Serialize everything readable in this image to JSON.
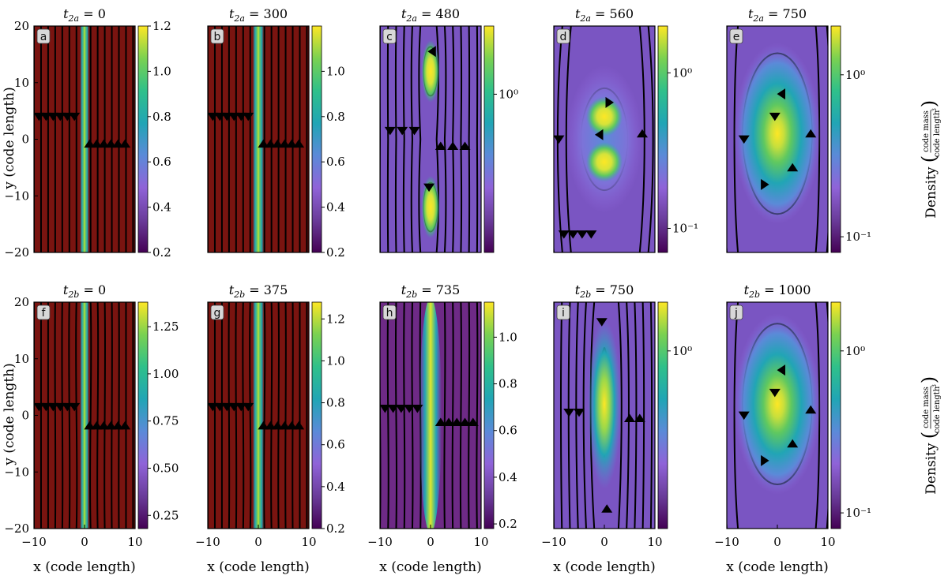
{
  "figure": {
    "x_axis_label": "x  (code length)",
    "y_axis_label": "y  (code length)",
    "colorbar_label": "Density",
    "colorbar_unit_numerator": "code mass",
    "colorbar_unit_denominator": "code length",
    "colorbar_unit_power": "3",
    "colormap": [
      "#7a1410",
      "#440154",
      "#6a3c9a",
      "#8f63d8",
      "#5b8ad8",
      "#21a5b5",
      "#2fc08a",
      "#7ad151",
      "#fde725"
    ],
    "background_color": "#7a1410",
    "streamline_color": "#000000"
  },
  "chart_data": [
    {
      "panel": "a",
      "type": "heatmap",
      "title_sub": "2a",
      "title_value": "0",
      "colorbar_scale": "linear",
      "clim": [
        0.2,
        1.2
      ],
      "colorbar_ticks": [
        "0.2",
        "0.4",
        "0.6",
        "0.8",
        "1.0",
        "1.2"
      ],
      "xlim": [
        -10,
        10
      ],
      "ylim": [
        -20,
        20
      ],
      "xticks": [],
      "yticks": [
        "−20",
        "−10",
        "0",
        "10",
        "20"
      ],
      "field": "sheet",
      "sheet_halfwidth": 0.4
    },
    {
      "panel": "b",
      "type": "heatmap",
      "title_sub": "2a",
      "title_value": "300",
      "colorbar_scale": "linear",
      "clim": [
        0.2,
        1.2
      ],
      "colorbar_ticks": [
        "0.2",
        "0.4",
        "0.6",
        "0.8",
        "1.0"
      ],
      "xlim": [
        -10,
        10
      ],
      "ylim": [
        -20,
        20
      ],
      "xticks": [],
      "yticks": [],
      "field": "sheet",
      "sheet_halfwidth": 0.5
    },
    {
      "panel": "c",
      "type": "heatmap",
      "title_sub": "2a",
      "title_value": "480",
      "colorbar_scale": "log",
      "clim": [
        0.2,
        2.0
      ],
      "colorbar_ticks": [
        "10⁰"
      ],
      "xlim": [
        -10,
        10
      ],
      "ylim": [
        -20,
        20
      ],
      "xticks": [],
      "yticks": [],
      "field": "twoblobs"
    },
    {
      "panel": "d",
      "type": "heatmap",
      "title_sub": "2a",
      "title_value": "560",
      "colorbar_scale": "log",
      "clim": [
        0.07,
        2.0
      ],
      "colorbar_ticks": [
        "10⁰",
        "10⁻¹"
      ],
      "xlim": [
        -10,
        10
      ],
      "ylim": [
        -20,
        20
      ],
      "xticks": [],
      "yticks": [],
      "field": "merge"
    },
    {
      "panel": "e",
      "type": "heatmap",
      "title_sub": "2a",
      "title_value": "750",
      "colorbar_scale": "log",
      "clim": [
        0.08,
        2.0
      ],
      "colorbar_ticks": [
        "10⁰",
        "10⁻¹"
      ],
      "xlim": [
        -10,
        10
      ],
      "ylim": [
        -20,
        20
      ],
      "xticks": [],
      "yticks": [],
      "field": "plasmoid"
    },
    {
      "panel": "f",
      "type": "heatmap",
      "title_sub": "2b",
      "title_value": "0",
      "colorbar_scale": "linear",
      "clim": [
        0.18,
        1.38
      ],
      "colorbar_ticks": [
        "0.25",
        "0.50",
        "0.75",
        "1.00",
        "1.25"
      ],
      "xlim": [
        -10,
        10
      ],
      "ylim": [
        -20,
        20
      ],
      "xticks": [
        "−10",
        "0",
        "10"
      ],
      "yticks": [
        "−20",
        "−10",
        "0",
        "10",
        "20"
      ],
      "field": "sheet",
      "sheet_halfwidth": 0.4
    },
    {
      "panel": "g",
      "type": "heatmap",
      "title_sub": "2b",
      "title_value": "375",
      "colorbar_scale": "linear",
      "clim": [
        0.2,
        1.28
      ],
      "colorbar_ticks": [
        "0.2",
        "0.4",
        "0.6",
        "0.8",
        "1.0",
        "1.2"
      ],
      "xlim": [
        -10,
        10
      ],
      "ylim": [
        -20,
        20
      ],
      "xticks": [
        "−10",
        "0",
        "10"
      ],
      "yticks": [],
      "field": "sheet",
      "sheet_halfwidth": 0.5
    },
    {
      "panel": "h",
      "type": "heatmap",
      "title_sub": "2b",
      "title_value": "735",
      "colorbar_scale": "linear",
      "clim": [
        0.18,
        1.15
      ],
      "colorbar_ticks": [
        "0.2",
        "0.4",
        "0.6",
        "0.8",
        "1.0"
      ],
      "xlim": [
        -10,
        10
      ],
      "ylim": [
        -20,
        20
      ],
      "xticks": [
        "−10",
        "0",
        "10"
      ],
      "yticks": [],
      "field": "thick"
    },
    {
      "panel": "i",
      "type": "heatmap",
      "title_sub": "2b",
      "title_value": "750",
      "colorbar_scale": "log",
      "clim": [
        0.08,
        2.0
      ],
      "colorbar_ticks": [
        "10⁰"
      ],
      "xlim": [
        -10,
        10
      ],
      "ylim": [
        -20,
        20
      ],
      "xticks": [
        "−10",
        "0",
        "10"
      ],
      "yticks": [],
      "field": "elongated"
    },
    {
      "panel": "j",
      "type": "heatmap",
      "title_sub": "2b",
      "title_value": "1000",
      "colorbar_scale": "log",
      "clim": [
        0.08,
        2.0
      ],
      "colorbar_ticks": [
        "10⁰",
        "10⁻¹"
      ],
      "xlim": [
        -10,
        10
      ],
      "ylim": [
        -20,
        20
      ],
      "xticks": [
        "−10",
        "0",
        "10"
      ],
      "yticks": [],
      "field": "plasmoid"
    }
  ]
}
